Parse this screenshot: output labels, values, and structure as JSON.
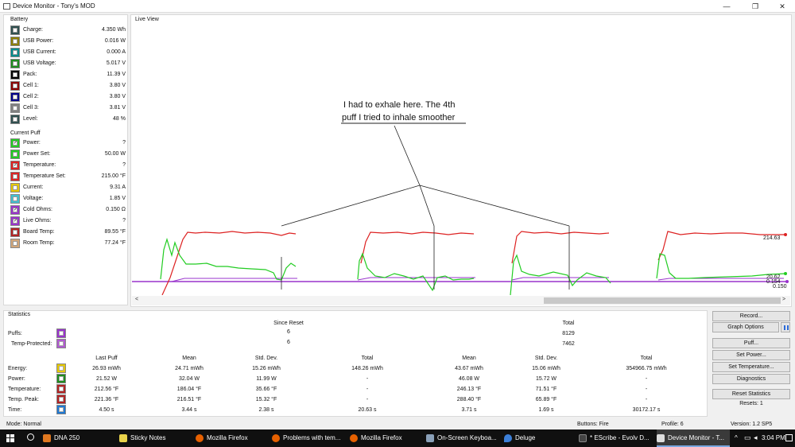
{
  "window": {
    "title": "Device Monitor - Tony's MOD",
    "controls": [
      "—",
      "❐",
      "✕"
    ]
  },
  "battery": {
    "title": "Battery",
    "items": [
      {
        "label": "Charge:",
        "value": "4.350 Wh",
        "color": "#2f4f4f"
      },
      {
        "label": "USB Power:",
        "value": "0.016 W",
        "color": "#8b7d00"
      },
      {
        "label": "USB Current:",
        "value": "0.000 A",
        "color": "#008b8b"
      },
      {
        "label": "USB Voltage:",
        "value": "5.017 V",
        "color": "#1e8b1e"
      },
      {
        "label": "Pack:",
        "value": "11.39 V",
        "color": "#000000"
      },
      {
        "label": "Cell 1:",
        "value": "3.80 V",
        "color": "#8b0000"
      },
      {
        "label": "Cell 2:",
        "value": "3.80 V",
        "color": "#00008b"
      },
      {
        "label": "Cell 3:",
        "value": "3.81 V",
        "color": "#808080"
      },
      {
        "label": "Level:",
        "value": "48 %",
        "color": "#2f4f4f"
      }
    ]
  },
  "current_puff": {
    "title": "Current Puff",
    "items": [
      {
        "label": "Power:",
        "value": "?",
        "color": "#22cc22",
        "checked": true
      },
      {
        "label": "Power Set:",
        "value": "50.00 W",
        "color": "#22cc22",
        "checked": false
      },
      {
        "label": "Temperature:",
        "value": "?",
        "color": "#dd2222",
        "checked": true
      },
      {
        "label": "Temperature Set:",
        "value": "215.00 °F",
        "color": "#dd2222",
        "checked": false
      },
      {
        "label": "Current:",
        "value": "9.31 A",
        "color": "#e6c800",
        "checked": false
      },
      {
        "label": "Voltage:",
        "value": "1.85 V",
        "color": "#40c0d0",
        "checked": false
      },
      {
        "label": "Cold Ohms:",
        "value": "0.150 Ω",
        "color": "#9933cc",
        "checked": true
      },
      {
        "label": "Live Ohms:",
        "value": "?",
        "color": "#9933cc",
        "checked": true
      },
      {
        "label": "Board Temp:",
        "value": "89.55 °F",
        "color": "#b22222",
        "checked": false
      },
      {
        "label": "Room Temp:",
        "value": "77.24 °F",
        "color": "#d2a679",
        "checked": false
      }
    ]
  },
  "live_view": {
    "title": "Live View",
    "annotation": [
      "I had to exhale here. The 4th",
      "puff I tried to inhale smoother"
    ],
    "right_labels": [
      "214.63",
      "20.62",
      "0.154",
      "0.150"
    ],
    "scroll_left": "<",
    "scroll_right": ">"
  },
  "statistics": {
    "title": "Statistics",
    "since_reset": "Since Reset",
    "total": "Total",
    "puffs_label": "Puffs:",
    "temp_protected_label": "Temp-Protected:",
    "puffs_since_reset": "6",
    "puffs_total": "8129",
    "tp_since_reset": "6",
    "tp_total": "7462",
    "col_headers": [
      "Last Puff",
      "Mean",
      "Std. Dev.",
      "Total",
      "Mean",
      "Std. Dev.",
      "Total"
    ],
    "rows": [
      {
        "label": "Energy:",
        "color": "#e6c800",
        "values": [
          "26.93 mWh",
          "24.71 mWh",
          "15.26 mWh",
          "148.26 mWh",
          "43.67 mWh",
          "15.06 mWh",
          "354966.75 mWh"
        ]
      },
      {
        "label": "Power:",
        "color": "#1e8b1e",
        "values": [
          "21.52 W",
          "32.04 W",
          "11.99 W",
          "-",
          "46.08 W",
          "15.72 W",
          "-"
        ]
      },
      {
        "label": "Temperature:",
        "color": "#b22222",
        "values": [
          "212.56 °F",
          "186.04 °F",
          "35.66 °F",
          "-",
          "246.13 °F",
          "71.51 °F",
          "-"
        ]
      },
      {
        "label": "Temp. Peak:",
        "color": "#b22222",
        "values": [
          "221.36 °F",
          "216.51 °F",
          "15.32 °F",
          "-",
          "288.40 °F",
          "65.89 °F",
          "-"
        ]
      },
      {
        "label": "Time:",
        "color": "#1e78d2",
        "values": [
          "4.50 s",
          "3.44 s",
          "2.38 s",
          "20.63 s",
          "3.71 s",
          "1.69 s",
          "30172.17 s"
        ]
      }
    ]
  },
  "buttons": {
    "record": "Record...",
    "graph_options": "Graph Options",
    "puff": "Puff...",
    "set_power": "Set Power...",
    "set_temperature": "Set Temperature...",
    "diagnostics": "Diagnostics",
    "reset_statistics": "Reset Statistics",
    "resets": "Resets: 1"
  },
  "status_bar": {
    "mode": "Mode: Normal",
    "buttons": "Buttons: Fire",
    "profile": "Profile: 6",
    "version": "Version: 1.2 SP5"
  },
  "taskbar": {
    "items": [
      {
        "label": "DNA 250",
        "color": "#e07820"
      },
      {
        "label": "Sticky Notes",
        "color": "#e8d24a"
      },
      {
        "label": "Mozilla Firefox",
        "color": "#e66000"
      },
      {
        "label": "Problems with tem...",
        "color": "#e66000"
      },
      {
        "label": "Mozilla Firefox",
        "color": "#e66000"
      },
      {
        "label": "On-Screen Keyboa...",
        "color": "#8aa0b8"
      },
      {
        "label": "Deluge",
        "color": "#3c7fd8"
      },
      {
        "label": "* EScribe - Evolv D...",
        "color": "#444444"
      },
      {
        "label": "Device Monitor - T...",
        "color": "#dddddd"
      }
    ],
    "time": "3:04 PM"
  }
}
